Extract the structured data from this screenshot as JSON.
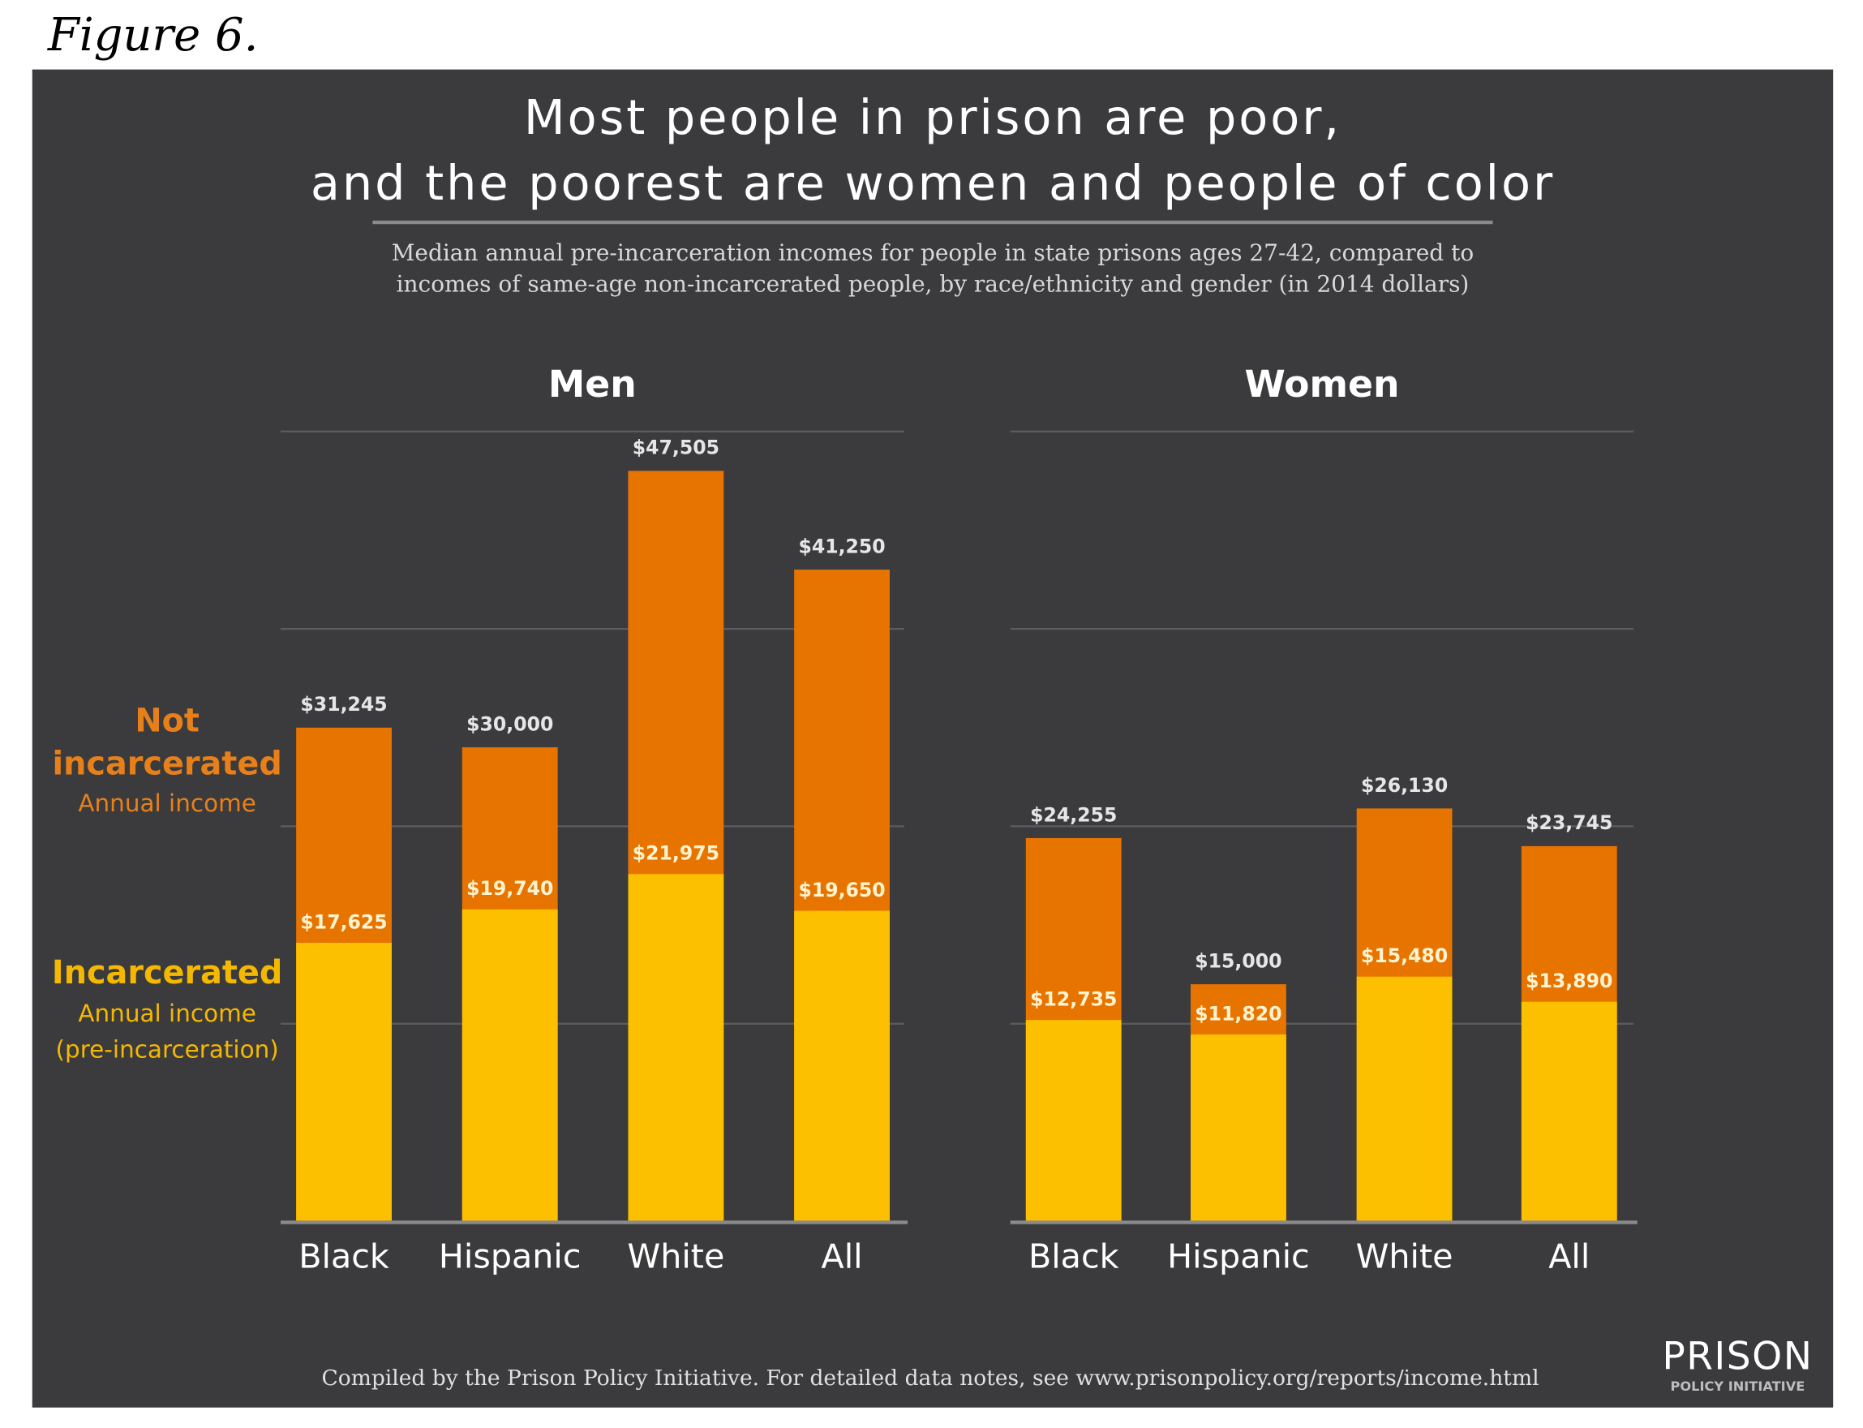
{
  "figure_label": "Figure 6.",
  "colors": {
    "background": "#3b3b3d",
    "not_incarcerated": "#e87400",
    "incarcerated": "#fcc000",
    "grid": "#5c5c5e",
    "text": "#ffffff"
  },
  "chart_data": {
    "type": "bar",
    "title_line1": "Most people in prison are poor,",
    "title_line2": "and the poorest are women and people of color",
    "subtitle_line1": "Median annual pre-incarceration incomes for people in state prisons ages 27-42, compared to",
    "subtitle_line2": "incomes of same-age non-incarcerated people, by race/ethnicity and gender (in 2014 dollars)",
    "ylim": [
      0,
      50000
    ],
    "gridlines": [
      12500,
      25000,
      37500,
      50000
    ],
    "legend": {
      "not_incarcerated_line1": "Not",
      "not_incarcerated_line2": "incarcerated",
      "not_incarcerated_line3": "Annual income",
      "incarcerated_line1": "Incarcerated",
      "incarcerated_line2": "Annual income",
      "incarcerated_line3": "(pre-incarceration)",
      "placement": "left"
    },
    "panels": [
      {
        "title": "Men",
        "categories": [
          "Black",
          "Hispanic",
          "White",
          "All"
        ],
        "series": [
          {
            "name": "Not incarcerated",
            "values": [
              31245,
              30000,
              47505,
              41250
            ],
            "labels": [
              "$31,245",
              "$30,000",
              "$47,505",
              "$41,250"
            ]
          },
          {
            "name": "Incarcerated",
            "values": [
              17625,
              19740,
              21975,
              19650
            ],
            "labels": [
              "$17,625",
              "$19,740",
              "$21,975",
              "$19,650"
            ]
          }
        ]
      },
      {
        "title": "Women",
        "categories": [
          "Black",
          "Hispanic",
          "White",
          "All"
        ],
        "series": [
          {
            "name": "Not incarcerated",
            "values": [
              24255,
              15000,
              26130,
              23745
            ],
            "labels": [
              "$24,255",
              "$15,000",
              "$26,130",
              "$23,745"
            ]
          },
          {
            "name": "Incarcerated",
            "values": [
              12735,
              11820,
              15480,
              13890
            ],
            "labels": [
              "$12,735",
              "$11,820",
              "$15,480",
              "$13,890"
            ]
          }
        ]
      }
    ],
    "source": "Compiled by the Prison Policy Initiative. For detailed data notes, see www.prisonpolicy.org/reports/income.html"
  },
  "logo": {
    "line1": "PRISON",
    "line2": "POLICY INITIATIVE"
  }
}
